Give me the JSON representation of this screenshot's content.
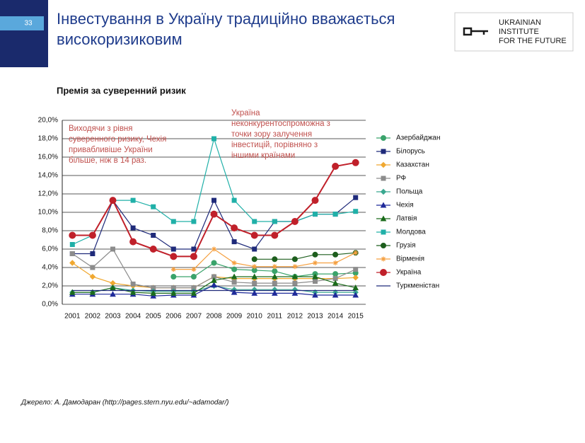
{
  "slide_number": "33",
  "title_lines": [
    "Інвестування в Україну традиційно вважається",
    "високоризиковим"
  ],
  "logo_lines": [
    "UKRAINIAN",
    "INSTITUTE",
    "FOR THE FUTURE"
  ],
  "source": "Джерело: А. Дамодаран (http://pages.stern.nyu.edu/~adamodar/)",
  "chart_data": {
    "type": "line",
    "title": "Премія за суверенний ризик",
    "annotations": [
      {
        "color": "#c0504d",
        "lines": [
          "Виходячи з рівня",
          "суверенного ризику, Чехія",
          "привабливіше України",
          "більше, ніж в 14 раз."
        ]
      },
      {
        "color": "#c0504d",
        "lines": [
          "Україна",
          "неконкурентоспроможна з",
          "точки зору залучення",
          "інвестицій, порівняно з",
          "іншими країнами"
        ]
      }
    ],
    "categories": [
      "2001",
      "2002",
      "2003",
      "2004",
      "2005",
      "2006",
      "2007",
      "2008",
      "2009",
      "2010",
      "2011",
      "2012",
      "2013",
      "2014",
      "2015"
    ],
    "ylim": [
      0,
      20
    ],
    "yticks": [
      {
        "value": 0,
        "label": "0,0%"
      },
      {
        "value": 2,
        "label": "2,0%"
      },
      {
        "value": 4,
        "label": "4,0%"
      },
      {
        "value": 6,
        "label": "6,0%"
      },
      {
        "value": 8,
        "label": "8,0%"
      },
      {
        "value": 10,
        "label": "10,0%"
      },
      {
        "value": 12,
        "label": "12,0%"
      },
      {
        "value": 14,
        "label": "14,0%"
      },
      {
        "value": 16,
        "label": "16,0%"
      },
      {
        "value": 18,
        "label": "18,0%"
      },
      {
        "value": 20,
        "label": "20,0%"
      }
    ],
    "grid": true,
    "series": [
      {
        "name": "Азербайджан",
        "color": "#3aa36b",
        "marker": "circle",
        "values": [
          null,
          null,
          null,
          null,
          null,
          3.0,
          3.0,
          4.5,
          3.8,
          3.7,
          3.6,
          3.0,
          3.3,
          3.3,
          3.4
        ]
      },
      {
        "name": "Білорусь",
        "color": "#1f2a7a",
        "marker": "square",
        "values": [
          5.5,
          5.5,
          11.3,
          8.3,
          7.5,
          6.0,
          6.0,
          11.3,
          6.8,
          6.0,
          9.0,
          9.0,
          9.8,
          9.8,
          11.6
        ]
      },
      {
        "name": "Казахстан",
        "color": "#f0a830",
        "marker": "diamond",
        "values": [
          4.5,
          3.0,
          2.3,
          2.0,
          1.8,
          1.8,
          1.8,
          3.0,
          2.8,
          2.8,
          2.8,
          2.8,
          2.8,
          2.8,
          2.9
        ]
      },
      {
        "name": "РФ",
        "color": "#8c8c8c",
        "marker": "square",
        "values": [
          5.5,
          4.0,
          6.0,
          2.2,
          1.8,
          1.8,
          1.8,
          3.0,
          2.4,
          2.3,
          2.3,
          2.3,
          2.5,
          2.8,
          3.8
        ]
      },
      {
        "name": "Польща",
        "color": "#3aa890",
        "marker": "diamond",
        "values": [
          1.3,
          1.3,
          1.8,
          1.5,
          1.4,
          1.4,
          1.4,
          2.0,
          1.6,
          1.6,
          1.6,
          1.6,
          1.3,
          1.3,
          1.3
        ]
      },
      {
        "name": "Чехія",
        "color": "#1f2a9a",
        "marker": "triangle",
        "values": [
          1.1,
          1.1,
          1.1,
          1.1,
          0.9,
          1.0,
          1.0,
          2.1,
          1.3,
          1.2,
          1.2,
          1.2,
          1.0,
          1.0,
          1.0
        ]
      },
      {
        "name": "Латвія",
        "color": "#1a6b1a",
        "marker": "triangle",
        "values": [
          1.3,
          1.3,
          1.8,
          1.3,
          1.2,
          1.2,
          1.2,
          2.6,
          3.0,
          3.0,
          3.0,
          3.0,
          3.0,
          2.3,
          1.8
        ]
      },
      {
        "name": "Молдова",
        "color": "#20b0a8",
        "marker": "square",
        "values": [
          6.5,
          7.5,
          11.3,
          11.3,
          10.6,
          9.0,
          9.0,
          18.0,
          11.3,
          9.0,
          9.0,
          9.0,
          9.8,
          9.8,
          10.1
        ]
      },
      {
        "name": "Грузія",
        "color": "#1d5e1d",
        "marker": "circle",
        "values": [
          null,
          null,
          null,
          null,
          null,
          null,
          null,
          null,
          null,
          4.9,
          4.9,
          4.9,
          5.4,
          5.4,
          5.6
        ]
      },
      {
        "name": "Вірменія",
        "color": "#f5a040",
        "marker": "star",
        "values": [
          null,
          null,
          null,
          null,
          null,
          3.8,
          3.8,
          6.0,
          4.5,
          4.1,
          4.1,
          4.1,
          4.5,
          4.5,
          5.6
        ]
      },
      {
        "name": "Україна",
        "color": "#c0202a",
        "marker": "bigcircle",
        "values": [
          7.5,
          7.5,
          11.3,
          6.8,
          6.0,
          5.2,
          5.2,
          9.8,
          8.3,
          7.5,
          7.5,
          9.0,
          11.3,
          15.0,
          15.4
        ]
      },
      {
        "name": "Туркменістан",
        "color": "#1f2a7a",
        "marker": "none",
        "values": [
          1.5,
          1.5,
          1.5,
          1.5,
          1.5,
          1.5,
          1.5,
          1.5,
          1.5,
          1.5,
          1.5,
          1.5,
          1.5,
          1.5,
          1.5
        ]
      }
    ]
  }
}
